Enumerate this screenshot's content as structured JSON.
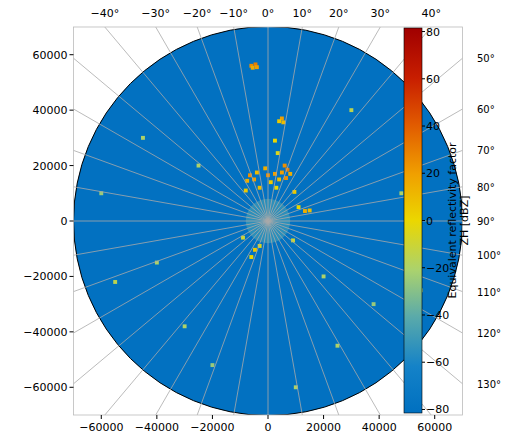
{
  "chart_data": {
    "type": "radar_ppi",
    "xlim": [
      -70000,
      70000
    ],
    "ylim": [
      -70000,
      70000
    ],
    "xticks": [
      {
        "value": -60000,
        "label": "−60000"
      },
      {
        "value": -40000,
        "label": "−40000"
      },
      {
        "value": -20000,
        "label": "−20000"
      },
      0,
      20000,
      40000,
      60000
    ],
    "yticks": [
      {
        "value": -60000,
        "label": "−60000"
      },
      {
        "value": -40000,
        "label": "−40000"
      },
      {
        "value": -20000,
        "label": "−20000"
      },
      0,
      20000,
      40000,
      60000
    ],
    "grid": true,
    "max_range": 70000,
    "background_value": -80,
    "colorbar_label": [
      "Equivalent reflectivity factor",
      "ZH [dBZ]"
    ],
    "colorbar_range": [
      -81.5,
      81.5
    ],
    "colorbar_ticks": [
      {
        "value": -80,
        "label": "−80"
      },
      {
        "value": -60,
        "label": "−60"
      },
      {
        "value": -40,
        "label": "−40"
      },
      {
        "value": -20,
        "label": "−20"
      },
      0,
      20,
      40,
      60,
      80
    ],
    "azimuth_labels_top": [
      {
        "value": -40,
        "label": "−40°"
      },
      {
        "value": -30,
        "label": "−30°"
      },
      {
        "value": -20,
        "label": "−20°"
      },
      {
        "value": -10,
        "label": "−10°"
      },
      {
        "value": 0,
        "label": "0°"
      },
      {
        "value": 10,
        "label": "10°"
      },
      {
        "value": 20,
        "label": "20°"
      },
      {
        "value": 30,
        "label": "30°"
      },
      {
        "value": 40,
        "label": "40°"
      }
    ],
    "azimuth_labels_right": [
      {
        "value": 50,
        "label": "50°"
      },
      {
        "value": 60,
        "label": "60°"
      },
      {
        "value": 70,
        "label": "70°"
      },
      {
        "value": 80,
        "label": "80°"
      },
      {
        "value": 90,
        "label": "90°"
      },
      {
        "value": 100,
        "label": "100°"
      },
      {
        "value": 110,
        "label": "110°"
      },
      {
        "value": 120,
        "label": "120°"
      },
      {
        "value": 130,
        "label": "130°"
      }
    ],
    "echo_disks": [
      {
        "x": 0,
        "y": 0,
        "radius": 8000,
        "value": -50
      }
    ],
    "cells": [
      {
        "x": -6000,
        "y": 56000,
        "value": 25
      },
      {
        "x": -4500,
        "y": 56500,
        "value": 30
      },
      {
        "x": -5500,
        "y": 55300,
        "value": 15
      },
      {
        "x": -4000,
        "y": 55500,
        "value": 20
      },
      {
        "x": 5000,
        "y": 37000,
        "value": 20
      },
      {
        "x": 5500,
        "y": 35600,
        "value": 10
      },
      {
        "x": 4000,
        "y": 36000,
        "value": 5
      },
      {
        "x": 2500,
        "y": 29000,
        "value": 0
      },
      {
        "x": 3500,
        "y": 24500,
        "value": -5
      },
      {
        "x": 6000,
        "y": 20000,
        "value": 25
      },
      {
        "x": 7000,
        "y": 18500,
        "value": 30
      },
      {
        "x": 5000,
        "y": 17500,
        "value": 20
      },
      {
        "x": 8000,
        "y": 17000,
        "value": 15
      },
      {
        "x": 6500,
        "y": 15500,
        "value": 25
      },
      {
        "x": 4000,
        "y": 15000,
        "value": 10
      },
      {
        "x": 2500,
        "y": 17000,
        "value": 20
      },
      {
        "x": 1000,
        "y": 14000,
        "value": 5
      },
      {
        "x": -1000,
        "y": 19000,
        "value": 15
      },
      {
        "x": 0,
        "y": 16500,
        "value": 25
      },
      {
        "x": 3000,
        "y": 12000,
        "value": 0
      },
      {
        "x": -6500,
        "y": 16500,
        "value": 25
      },
      {
        "x": -5000,
        "y": 15000,
        "value": 20
      },
      {
        "x": -7500,
        "y": 14500,
        "value": 15
      },
      {
        "x": -4000,
        "y": 17500,
        "value": 10
      },
      {
        "x": -8000,
        "y": 11000,
        "value": 5
      },
      {
        "x": -3000,
        "y": 12000,
        "value": 10
      },
      {
        "x": 9500,
        "y": 10500,
        "value": 5
      },
      {
        "x": 11000,
        "y": 5000,
        "value": 0
      },
      {
        "x": 13300,
        "y": 3600,
        "value": 15
      },
      {
        "x": 15000,
        "y": 3800,
        "value": 10
      },
      {
        "x": -4700,
        "y": -10400,
        "value": 5
      },
      {
        "x": -6000,
        "y": -13000,
        "value": 0
      },
      {
        "x": -3000,
        "y": -9000,
        "value": -5
      },
      {
        "x": -9000,
        "y": -6000,
        "value": -10
      },
      {
        "x": 9000,
        "y": -7000,
        "value": -10
      },
      {
        "x": -40000,
        "y": -15000,
        "value": -20
      },
      {
        "x": -55000,
        "y": -22000,
        "value": -15
      },
      {
        "x": -30000,
        "y": -38000,
        "value": -20
      },
      {
        "x": -20000,
        "y": -52000,
        "value": -25
      },
      {
        "x": 25000,
        "y": -45000,
        "value": -20
      },
      {
        "x": 38000,
        "y": -30000,
        "value": -25
      },
      {
        "x": 48000,
        "y": 10000,
        "value": -20
      },
      {
        "x": -45000,
        "y": 30000,
        "value": -20
      },
      {
        "x": 30000,
        "y": 40000,
        "value": -15
      },
      {
        "x": -25000,
        "y": 20000,
        "value": -20
      },
      {
        "x": 20000,
        "y": -20000,
        "value": -20
      },
      {
        "x": -60000,
        "y": 10000,
        "value": -25
      },
      {
        "x": 10000,
        "y": -60000,
        "value": -20
      },
      {
        "x": 55000,
        "y": -25000,
        "value": -25
      }
    ]
  }
}
